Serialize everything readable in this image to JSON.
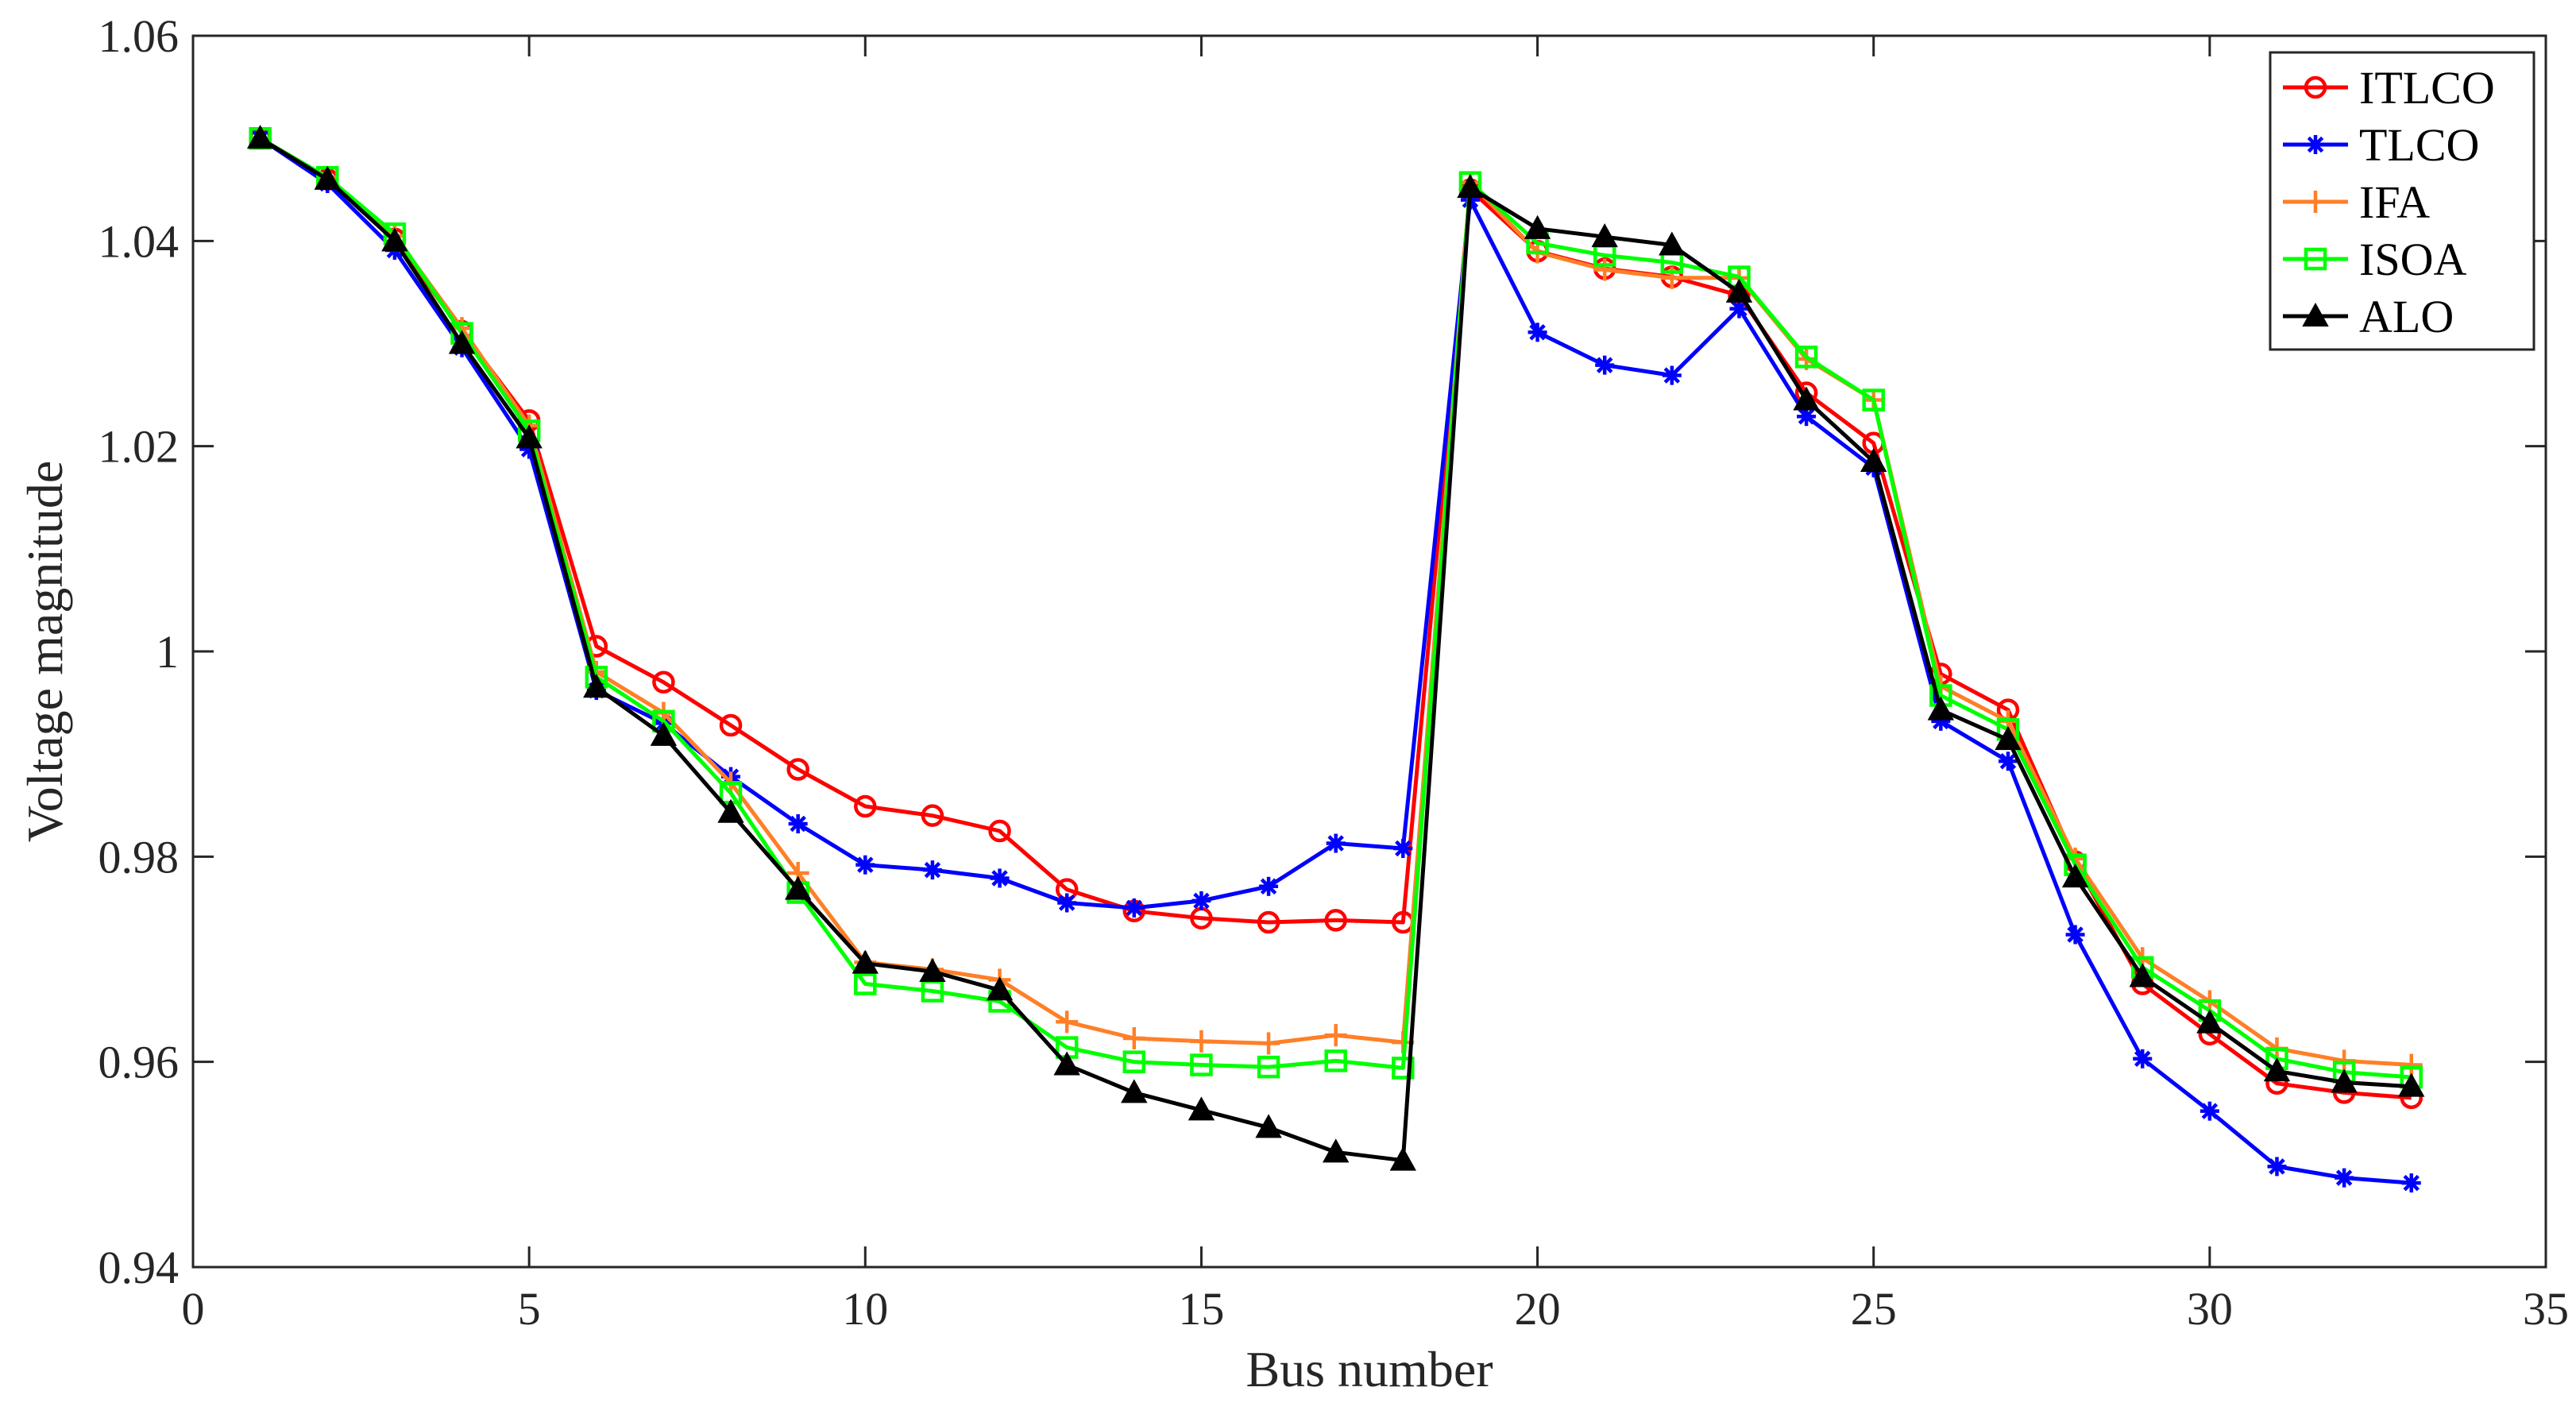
{
  "chart_data": {
    "type": "line",
    "xlabel": "Bus number",
    "ylabel": "Voltage magnitude",
    "xlim": [
      0,
      35
    ],
    "ylim": [
      0.94,
      1.06
    ],
    "xticks": [
      0,
      5,
      10,
      15,
      20,
      25,
      30,
      35
    ],
    "yticks": [
      0.94,
      0.96,
      0.98,
      1,
      1.02,
      1.04,
      1.06
    ],
    "xtick_labels": [
      "0",
      "5",
      "10",
      "15",
      "20",
      "25",
      "30",
      "35"
    ],
    "ytick_labels": [
      "0.94",
      "0.96",
      "0.98",
      "1",
      "1.02",
      "1.04",
      "1.06"
    ],
    "grid": false,
    "legend_position": "top-right",
    "x": [
      1,
      2,
      3,
      4,
      5,
      6,
      7,
      8,
      9,
      10,
      11,
      12,
      13,
      14,
      15,
      16,
      17,
      18,
      19,
      20,
      21,
      22,
      23,
      24,
      25,
      26,
      27,
      28,
      29,
      30,
      31,
      32,
      33
    ],
    "series": [
      {
        "name": "ITLCO",
        "color": "#ff0000",
        "marker": "circle",
        "values": [
          1.05,
          1.046,
          1.0402,
          1.0312,
          1.0225,
          1.0005,
          0.997,
          0.9928,
          0.9885,
          0.9849,
          0.984,
          0.9825,
          0.9768,
          0.9747,
          0.974,
          0.9736,
          0.9738,
          0.9736,
          1.045,
          1.039,
          1.0373,
          1.0365,
          1.0347,
          1.0252,
          1.0203,
          0.9978,
          0.9943,
          0.9795,
          0.9676,
          0.9627,
          0.9579,
          0.957,
          0.9565
        ]
      },
      {
        "name": "TLCO",
        "color": "#0000ff",
        "marker": "asterisk",
        "values": [
          1.05,
          1.0456,
          1.0391,
          1.0296,
          1.0197,
          0.9962,
          0.993,
          0.9878,
          0.9832,
          0.9792,
          0.9787,
          0.9779,
          0.9755,
          0.975,
          0.9757,
          0.9771,
          0.9813,
          0.9808,
          1.044,
          1.0311,
          1.0279,
          1.0269,
          1.0334,
          1.0229,
          1.0179,
          0.9932,
          0.9893,
          0.9724,
          0.9603,
          0.9552,
          0.9498,
          0.9487,
          0.9482
        ]
      },
      {
        "name": "IFA",
        "color": "#ff7f27",
        "marker": "plus",
        "values": [
          1.05,
          1.0462,
          1.0405,
          1.0315,
          1.022,
          0.998,
          0.994,
          0.9872,
          0.9784,
          0.9697,
          0.969,
          0.968,
          0.9639,
          0.9623,
          0.962,
          0.9618,
          0.9626,
          0.9619,
          1.0457,
          1.0389,
          1.0372,
          1.0364,
          1.0364,
          1.0285,
          1.0245,
          0.9966,
          0.9932,
          0.9798,
          0.9701,
          0.9659,
          0.9613,
          0.9601,
          0.9597
        ]
      },
      {
        "name": "ISOA",
        "color": "#00ff00",
        "marker": "square",
        "values": [
          1.05,
          1.0462,
          1.0407,
          1.031,
          1.0215,
          0.9975,
          0.9932,
          0.9862,
          0.9765,
          0.9676,
          0.9669,
          0.9659,
          0.9614,
          0.96,
          0.9597,
          0.9595,
          0.9601,
          0.9594,
          1.0457,
          1.0398,
          1.0386,
          1.0379,
          1.0365,
          1.0287,
          1.0245,
          0.9957,
          0.9924,
          0.9792,
          0.9692,
          0.965,
          0.9603,
          0.959,
          0.9585
        ]
      },
      {
        "name": "ALO",
        "color": "#000000",
        "marker": "triangle",
        "values": [
          1.05,
          1.046,
          1.04,
          1.03,
          1.0208,
          0.9965,
          0.9918,
          0.9843,
          0.9768,
          0.9696,
          0.9688,
          0.967,
          0.9597,
          0.957,
          0.9553,
          0.9536,
          0.9512,
          0.9504,
          1.0452,
          1.0412,
          1.0404,
          1.0396,
          1.035,
          1.0245,
          1.0185,
          0.9943,
          0.9914,
          0.978,
          0.9683,
          0.9638,
          0.9591,
          0.958,
          0.9576
        ]
      }
    ]
  }
}
